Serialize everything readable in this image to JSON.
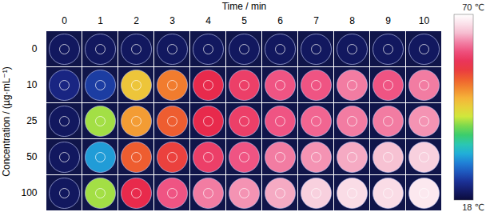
{
  "chart_data": {
    "type": "heatmap",
    "xlabel": "Time / min",
    "ylabel": "Concentration / (µg·mL⁻¹)",
    "x": [
      0,
      1,
      2,
      3,
      4,
      5,
      6,
      7,
      8,
      9,
      10
    ],
    "y": [
      0,
      10,
      25,
      50,
      100
    ],
    "cells": [
      [
        20,
        20,
        20,
        20,
        20,
        20,
        20,
        20,
        20,
        20,
        20
      ],
      [
        22,
        24,
        45,
        50,
        56,
        58,
        60,
        60,
        62,
        60,
        62
      ],
      [
        20,
        40,
        48,
        52,
        56,
        58,
        60,
        61,
        62,
        62,
        63
      ],
      [
        20,
        30,
        52,
        54,
        58,
        60,
        62,
        63,
        64,
        65,
        66
      ],
      [
        20,
        40,
        56,
        60,
        62,
        63,
        64,
        66,
        67,
        67,
        68
      ]
    ],
    "colorbar": {
      "range": [
        18,
        70
      ],
      "ticks": [
        {
          "value": 70,
          "label": "70 ℃"
        },
        {
          "value": 18,
          "label": "18 ℃"
        }
      ]
    }
  }
}
